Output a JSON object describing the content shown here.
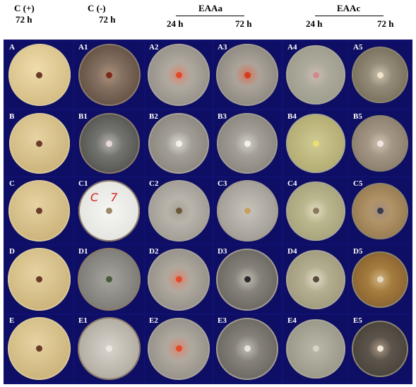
{
  "headers": {
    "c_pos": "C (+)",
    "c_pos_time": "72 h",
    "c_neg": "C (-)",
    "c_neg_time": "72 h",
    "eaaa": "EAAa",
    "eaaa_24": "24 h",
    "eaaa_72": "72 h",
    "eaac": "EAAc",
    "eaac_24": "24 h",
    "eaac_72": "72 h"
  },
  "rows": [
    {
      "labels": [
        "A",
        "A1",
        "A2",
        "A3",
        "A4",
        "A5"
      ]
    },
    {
      "labels": [
        "B",
        "B1",
        "B2",
        "B3",
        "B4",
        "B5"
      ]
    },
    {
      "labels": [
        "C",
        "C1",
        "C2",
        "C3",
        "C4",
        "C5"
      ]
    },
    {
      "labels": [
        "D",
        "D1",
        "D2",
        "D3",
        "D4",
        "D5"
      ]
    },
    {
      "labels": [
        "E",
        "E1",
        "E2",
        "E3",
        "E4",
        "E5"
      ]
    }
  ],
  "dish_note": "C 7"
}
